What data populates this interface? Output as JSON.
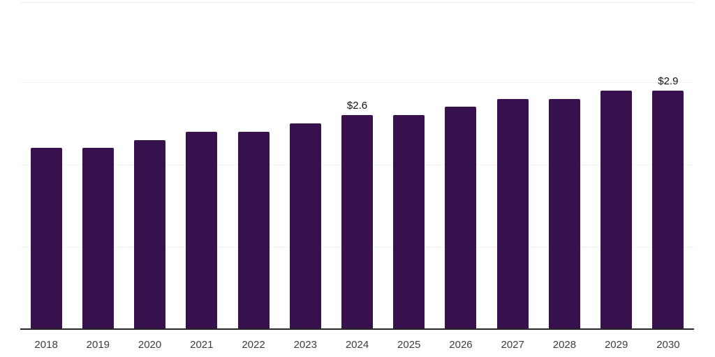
{
  "chart_data": {
    "type": "bar",
    "title": "",
    "xlabel": "",
    "ylabel": "",
    "categories": [
      "2018",
      "2019",
      "2020",
      "2021",
      "2022",
      "2023",
      "2024",
      "2025",
      "2026",
      "2027",
      "2028",
      "2029",
      "2030"
    ],
    "values": [
      2.2,
      2.2,
      2.3,
      2.4,
      2.4,
      2.5,
      2.6,
      2.6,
      2.7,
      2.8,
      2.8,
      2.9,
      2.9
    ],
    "value_labels": [
      "",
      "",
      "",
      "",
      "",
      "",
      "$2.6",
      "",
      "",
      "",
      "",
      "",
      "$2.9"
    ],
    "ylim": [
      0,
      4
    ],
    "ytick_interval": 1,
    "ytick_labels_visible": false,
    "grid": "horizontal",
    "legend": "none",
    "colors": {
      "bar": "#36114d",
      "axis": "#262626",
      "gridline": "#f3f3f3",
      "top_border": "#ededed",
      "value_label": "#111111",
      "tick_label": "#3d3d3d",
      "background": "#ffffff"
    }
  }
}
